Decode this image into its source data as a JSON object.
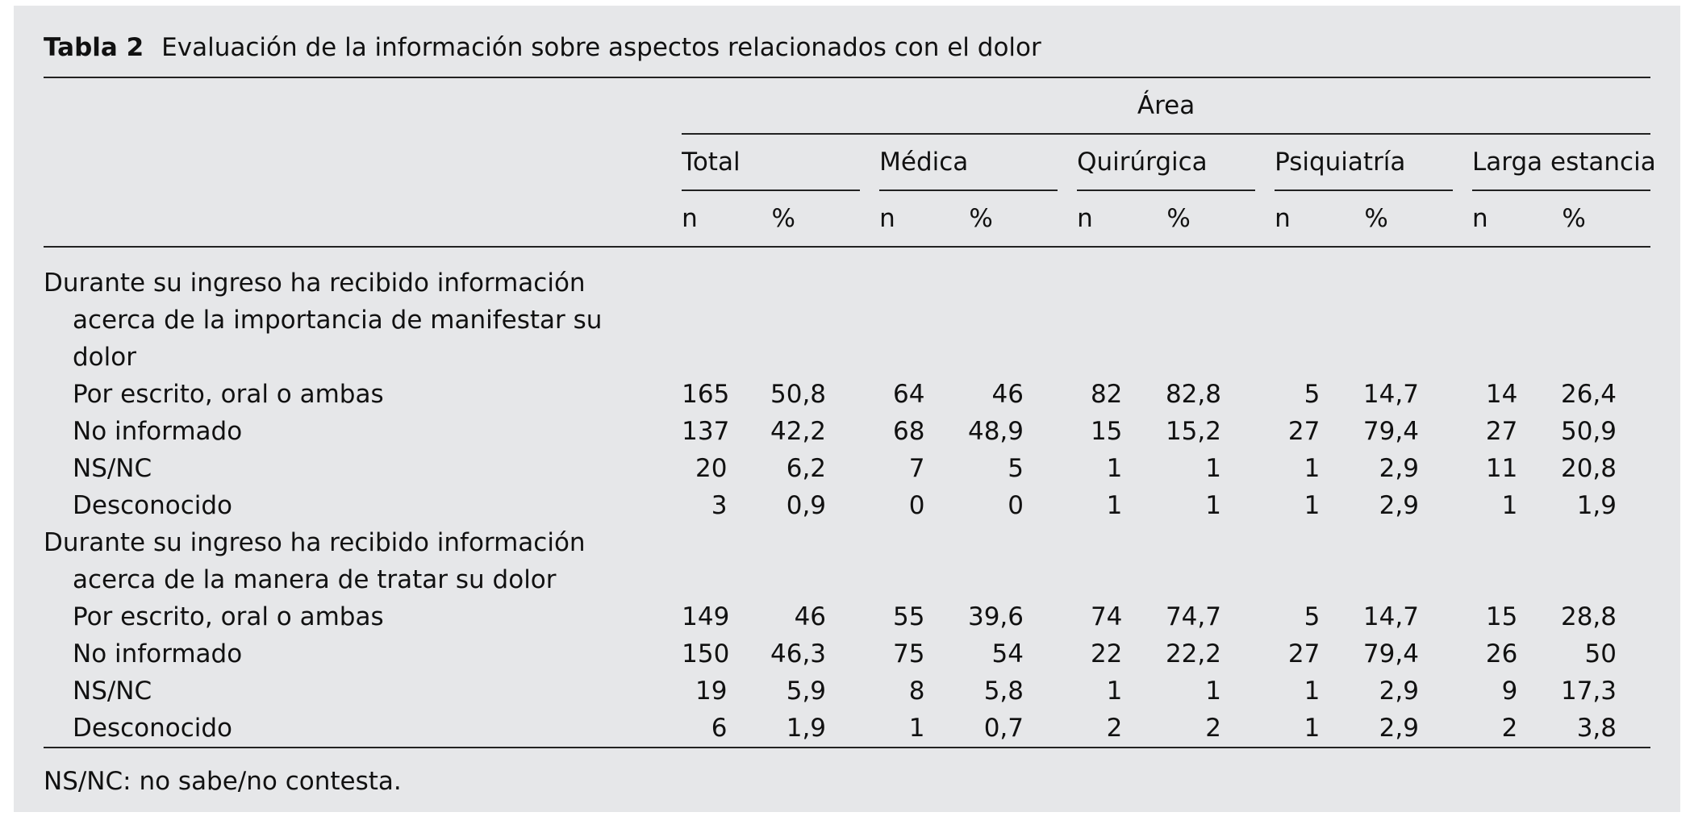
{
  "title": {
    "label": "Tabla 2",
    "text": "Evaluación de la información sobre aspectos relacionados con el dolor"
  },
  "table": {
    "spanner": "Área",
    "groups": [
      {
        "name": "Total",
        "columns": [
          "n",
          "%"
        ]
      },
      {
        "name": "Médica",
        "columns": [
          "n",
          "%"
        ]
      },
      {
        "name": "Quirúrgica",
        "columns": [
          "n",
          "%"
        ]
      },
      {
        "name": "Psiquiatría",
        "columns": [
          "n",
          "%"
        ]
      },
      {
        "name": "Larga estancia",
        "columns": [
          "n",
          "%"
        ]
      }
    ],
    "sections": [
      {
        "heading": "Durante su ingreso ha recibido información acerca de la importancia de manifestar su dolor",
        "rows": [
          {
            "label": "Por escrito, oral o ambas",
            "values": [
              "165",
              "50,8",
              "64",
              "46",
              "82",
              "82,8",
              "5",
              "14,7",
              "14",
              "26,4"
            ]
          },
          {
            "label": "No informado",
            "values": [
              "137",
              "42,2",
              "68",
              "48,9",
              "15",
              "15,2",
              "27",
              "79,4",
              "27",
              "50,9"
            ]
          },
          {
            "label": "NS/NC",
            "values": [
              "20",
              "6,2",
              "7",
              "5",
              "1",
              "1",
              "1",
              "2,9",
              "11",
              "20,8"
            ]
          },
          {
            "label": "Desconocido",
            "values": [
              "3",
              "0,9",
              "0",
              "0",
              "1",
              "1",
              "1",
              "2,9",
              "1",
              "1,9"
            ]
          }
        ]
      },
      {
        "heading": "Durante su ingreso ha recibido información acerca de la manera de tratar su dolor",
        "rows": [
          {
            "label": "Por escrito, oral o ambas",
            "values": [
              "149",
              "46",
              "55",
              "39,6",
              "74",
              "74,7",
              "5",
              "14,7",
              "15",
              "28,8"
            ]
          },
          {
            "label": "No informado",
            "values": [
              "150",
              "46,3",
              "75",
              "54",
              "22",
              "22,2",
              "27",
              "79,4",
              "26",
              "50"
            ]
          },
          {
            "label": "NS/NC",
            "values": [
              "19",
              "5,9",
              "8",
              "5,8",
              "1",
              "1",
              "1",
              "2,9",
              "9",
              "17,3"
            ]
          },
          {
            "label": "Desconocido",
            "values": [
              "6",
              "1,9",
              "1",
              "0,7",
              "2",
              "2",
              "1",
              "2,9",
              "2",
              "3,8"
            ]
          }
        ]
      }
    ]
  },
  "footnote": "NS/NC: no sabe/no contesta."
}
